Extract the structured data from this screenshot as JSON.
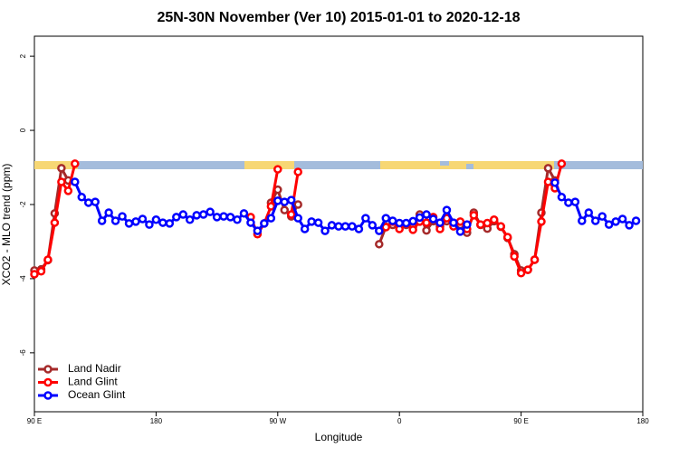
{
  "chart_data": {
    "type": "line",
    "title": "25N-30N November (Ver 10)   2015-01-01 to 2020-12-18",
    "x_label": "Longitude",
    "y_label": "XCO2 - MLO trend (ppm)",
    "xlim": [
      90,
      540
    ],
    "ylim": [
      -7.59,
      2.54
    ],
    "xticks": [
      {
        "value": 90,
        "label": "90 E"
      },
      180,
      {
        "value": 270,
        "label": "90 W"
      },
      {
        "value": 360,
        "label": "0"
      },
      {
        "value": 450,
        "label": "90 E"
      },
      {
        "value": 540,
        "label": "180"
      }
    ],
    "yticks": [
      2,
      0,
      -2,
      -4,
      -6
    ],
    "legend": "bottom-left",
    "series": [
      {
        "name": "Land Nadir",
        "color": "#a52a2a",
        "x": [
          90,
          95,
          100,
          105,
          110,
          115,
          120,
          265,
          270,
          275,
          280,
          285,
          290,
          345,
          350,
          355,
          360,
          365,
          370,
          375,
          380,
          385,
          390,
          395,
          400,
          405,
          410,
          415,
          420,
          425,
          430,
          435,
          440,
          445,
          450,
          455,
          460,
          465,
          470,
          475
        ],
        "values": [
          -3.78,
          -3.75,
          -3.5,
          -2.24,
          -1.02,
          -1.35,
          null,
          -1.95,
          -1.6,
          -2.15,
          -2.32,
          -2.0,
          null,
          -3.07,
          -2.6,
          -2.55,
          -2.6,
          -2.55,
          -2.6,
          -2.27,
          -2.7,
          -2.45,
          -2.6,
          -2.45,
          -2.5,
          -2.55,
          -2.76,
          -2.22,
          -2.55,
          -2.65,
          -2.45,
          -2.6,
          -2.9,
          -3.34,
          -3.78,
          -3.76,
          -3.49,
          -2.22,
          -1.02,
          -1.35
        ]
      },
      {
        "name": "Land Glint",
        "color": "#ff0000",
        "x": [
          90,
          95,
          100,
          105,
          110,
          115,
          120,
          125,
          250,
          255,
          260,
          265,
          270,
          275,
          280,
          285,
          290,
          350,
          355,
          360,
          365,
          370,
          375,
          380,
          385,
          390,
          395,
          400,
          405,
          410,
          415,
          420,
          425,
          430,
          435,
          440,
          445,
          450,
          455,
          460,
          465,
          470,
          475,
          480
        ],
        "values": [
          -3.88,
          -3.8,
          -3.49,
          -2.49,
          -1.39,
          -1.63,
          -0.9,
          null,
          -2.34,
          -2.8,
          -2.51,
          -2.05,
          -1.05,
          null,
          -2.27,
          -1.12,
          null,
          -2.61,
          -2.46,
          -2.66,
          -2.51,
          -2.68,
          -2.46,
          -2.49,
          -2.34,
          -2.66,
          -2.37,
          -2.59,
          -2.46,
          -2.66,
          -2.29,
          -2.54,
          -2.5,
          -2.41,
          -2.59,
          -2.88,
          -3.4,
          -3.85,
          -3.76,
          -3.49,
          -2.46,
          -1.39,
          -1.56,
          -0.9
        ]
      },
      {
        "name": "Ocean Glint",
        "color": "#0000ff",
        "x": [
          120,
          125,
          130,
          135,
          140,
          145,
          150,
          155,
          160,
          165,
          170,
          175,
          180,
          185,
          190,
          195,
          200,
          205,
          210,
          215,
          220,
          225,
          230,
          235,
          240,
          245,
          250,
          255,
          260,
          265,
          270,
          275,
          280,
          285,
          290,
          295,
          300,
          305,
          310,
          315,
          320,
          325,
          330,
          335,
          340,
          345,
          350,
          355,
          360,
          365,
          370,
          375,
          380,
          385,
          390,
          395,
          400,
          405,
          410,
          415,
          475,
          480,
          485,
          490,
          495,
          500,
          505,
          510,
          515,
          520,
          525,
          530,
          535
        ],
        "values": [
          -1.39,
          -1.8,
          -1.95,
          -1.93,
          -2.44,
          -2.22,
          -2.44,
          -2.32,
          -2.51,
          -2.46,
          -2.39,
          -2.54,
          -2.41,
          -2.49,
          -2.51,
          -2.34,
          -2.27,
          -2.41,
          -2.29,
          -2.27,
          -2.2,
          -2.34,
          -2.32,
          -2.34,
          -2.41,
          -2.24,
          -2.49,
          -2.71,
          -2.51,
          -2.37,
          -1.9,
          -1.93,
          -1.88,
          -2.37,
          -2.66,
          -2.46,
          -2.49,
          -2.71,
          -2.56,
          -2.59,
          -2.59,
          -2.59,
          -2.66,
          -2.37,
          -2.56,
          -2.71,
          -2.37,
          -2.44,
          -2.5,
          -2.5,
          -2.45,
          -2.35,
          -2.27,
          -2.39,
          -2.49,
          -2.15,
          -2.49,
          -2.73,
          -2.54,
          null,
          -1.41,
          -1.8,
          -1.95,
          -1.93,
          -2.44,
          -2.22,
          -2.44,
          -2.32,
          -2.54,
          -2.46,
          -2.39,
          -2.56,
          -2.44
        ]
      }
    ]
  }
}
